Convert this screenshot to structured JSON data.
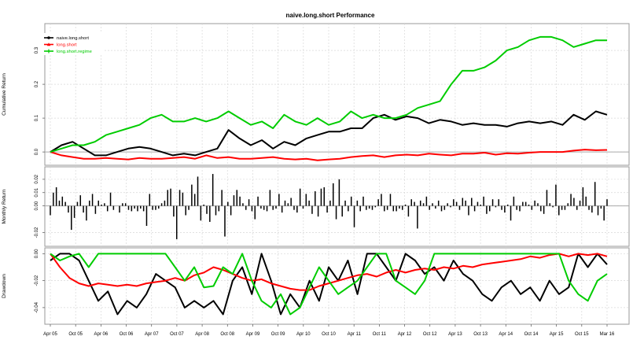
{
  "chart_data": {
    "type": "line",
    "title": "naive.long.short Performance",
    "x_labels": [
      "Apr 05",
      "Oct 05",
      "Apr 06",
      "Oct 06",
      "Apr 07",
      "Oct 07",
      "Apr 08",
      "Oct 08",
      "Apr 09",
      "Oct 09",
      "Apr 10",
      "Oct 10",
      "Apr 11",
      "Oct 11",
      "Apr 12",
      "Oct 12",
      "Apr 13",
      "Oct 13",
      "Apr 14",
      "Oct 14",
      "Apr 15",
      "Oct 15",
      "Mar 16"
    ],
    "grid": true,
    "legend_position": "top-left",
    "panels": [
      {
        "ylabel": "Cumulative Return",
        "ylim": [
          -0.03,
          0.37
        ],
        "yticks": [
          "0.0",
          "0.1",
          "0.2",
          "0.3"
        ],
        "ytick_values": [
          0.0,
          0.1,
          0.2,
          0.3
        ],
        "series": [
          {
            "name": "naive.long.short",
            "color": "#000000",
            "marker": "circle",
            "values": [
              0.0,
              0.02,
              0.03,
              0.01,
              -0.01,
              -0.01,
              0.0,
              0.01,
              0.015,
              0.01,
              0.0,
              -0.01,
              -0.005,
              -0.01,
              0.0,
              0.01,
              0.065,
              0.04,
              0.02,
              0.035,
              0.01,
              0.03,
              0.02,
              0.04,
              0.05,
              0.06,
              0.06,
              0.07,
              0.07,
              0.1,
              0.11,
              0.095,
              0.105,
              0.1,
              0.085,
              0.095,
              0.09,
              0.08,
              0.085,
              0.08,
              0.08,
              0.075,
              0.085,
              0.09,
              0.085,
              0.09,
              0.08,
              0.11,
              0.095,
              0.12,
              0.11
            ]
          },
          {
            "name": "long.short",
            "color": "#ff0000",
            "marker": "triangle",
            "values": [
              0.0,
              -0.01,
              -0.015,
              -0.02,
              -0.02,
              -0.018,
              -0.02,
              -0.022,
              -0.018,
              -0.02,
              -0.02,
              -0.018,
              -0.015,
              -0.02,
              -0.01,
              -0.018,
              -0.015,
              -0.02,
              -0.02,
              -0.018,
              -0.015,
              -0.02,
              -0.022,
              -0.02,
              -0.025,
              -0.022,
              -0.02,
              -0.015,
              -0.012,
              -0.01,
              -0.015,
              -0.01,
              -0.008,
              -0.01,
              -0.005,
              -0.008,
              -0.01,
              -0.005,
              -0.005,
              -0.002,
              -0.008,
              -0.004,
              -0.005,
              -0.002,
              0.0,
              0.0,
              0.0,
              0.004,
              0.007,
              0.005,
              0.006
            ]
          },
          {
            "name": "long.short.regime",
            "color": "#00cc00",
            "marker": "plus",
            "values": [
              0.0,
              0.01,
              0.02,
              0.02,
              0.03,
              0.05,
              0.06,
              0.07,
              0.08,
              0.1,
              0.11,
              0.09,
              0.09,
              0.1,
              0.09,
              0.1,
              0.12,
              0.1,
              0.08,
              0.09,
              0.07,
              0.11,
              0.09,
              0.08,
              0.1,
              0.08,
              0.09,
              0.12,
              0.1,
              0.11,
              0.1,
              0.1,
              0.11,
              0.13,
              0.14,
              0.15,
              0.2,
              0.24,
              0.24,
              0.25,
              0.27,
              0.3,
              0.31,
              0.33,
              0.34,
              0.34,
              0.33,
              0.31,
              0.32,
              0.33,
              0.33
            ]
          }
        ]
      },
      {
        "ylabel": "Monthly Return",
        "ylim": [
          -0.028,
          0.027
        ],
        "yticks": [
          "-0.02",
          "0.00",
          "0.01",
          "0.02"
        ],
        "ytick_values": [
          -0.02,
          0.0,
          0.01,
          0.02
        ],
        "bar_values": [
          -0.007,
          0.01,
          0.014,
          0.004,
          0.007,
          0.003,
          -0.005,
          -0.018,
          -0.009,
          0.003,
          0.008,
          -0.005,
          -0.011,
          0.004,
          0.009,
          -0.006,
          0.004,
          0.001,
          0.002,
          -0.004,
          0.01,
          -0.003,
          0.0,
          -0.005,
          0.002,
          0.002,
          -0.003,
          -0.004,
          -0.002,
          -0.004,
          -0.002,
          -0.004,
          -0.015,
          0.009,
          -0.003,
          -0.003,
          -0.002,
          0.002,
          0.004,
          0.012,
          0.013,
          -0.008,
          -0.025,
          0.012,
          0.01,
          -0.007,
          -0.003,
          0.016,
          0.009,
          0.022,
          -0.011,
          0.001,
          -0.006,
          -0.012,
          0.024,
          -0.007,
          -0.004,
          0.012,
          -0.023,
          0.003,
          -0.007,
          0.008,
          0.012,
          0.007,
          0.002,
          -0.003,
          0.005,
          -0.004,
          -0.01,
          0.007,
          -0.002,
          -0.003,
          -0.004,
          0.012,
          -0.003,
          -0.002,
          0.009,
          -0.005,
          0.004,
          0.002,
          0.006,
          -0.003,
          -0.005,
          0.013,
          -0.002,
          0.009,
          0.004,
          -0.006,
          0.011,
          -0.008,
          0.013,
          0.014,
          -0.005,
          0.004,
          0.017,
          -0.01,
          0.02,
          -0.008,
          0.004,
          -0.004,
          0.007,
          -0.016,
          0.004,
          -0.004,
          0.007,
          -0.003,
          -0.002,
          -0.003,
          -0.001,
          0.005,
          0.009,
          -0.004,
          -0.003,
          0.009,
          -0.004,
          -0.004,
          -0.002,
          -0.003,
          0.001,
          -0.008,
          0.005,
          0.003,
          -0.017,
          0.004,
          0.002,
          0.007,
          -0.003,
          0.002,
          -0.002,
          0.004,
          -0.004,
          -0.003,
          0.002,
          -0.001,
          0.005,
          0.003,
          -0.003,
          0.006,
          0.004,
          -0.007,
          0.006,
          -0.004,
          0.003,
          0.001,
          0.007,
          -0.006,
          -0.004,
          0.005,
          -0.001,
          0.005,
          -0.003,
          -0.005,
          0.001,
          -0.011,
          0.007,
          -0.003,
          -0.004,
          0.003,
          0.003,
          0.001,
          -0.003,
          0.004,
          0.002,
          -0.004,
          -0.006,
          0.012,
          0.002,
          -0.001,
          0.016,
          -0.007,
          -0.003,
          -0.003,
          0.002,
          0.009,
          0.006,
          -0.003,
          0.004,
          0.014,
          0.007,
          -0.003,
          -0.005,
          0.018,
          -0.007,
          -0.002,
          -0.011,
          0.005
        ]
      },
      {
        "ylabel": "Drawdown",
        "ylim": [
          -0.05,
          0.002
        ],
        "yticks": [
          "-0.04",
          "-0.02",
          "0.00"
        ],
        "ytick_values": [
          -0.04,
          -0.02,
          0.0
        ],
        "series": [
          {
            "name": "naive.long.short",
            "color": "#000000",
            "values": [
              -0.005,
              0.0,
              0.0,
              -0.005,
              -0.02,
              -0.035,
              -0.028,
              -0.045,
              -0.035,
              -0.04,
              -0.03,
              -0.015,
              -0.02,
              -0.025,
              -0.04,
              -0.035,
              -0.04,
              -0.035,
              -0.045,
              -0.02,
              -0.01,
              -0.03,
              0.0,
              -0.02,
              -0.045,
              -0.03,
              -0.04,
              -0.02,
              -0.035,
              -0.01,
              -0.02,
              -0.005,
              -0.03,
              0.0,
              0.0,
              -0.01,
              -0.02,
              0.0,
              -0.005,
              -0.015,
              -0.01,
              -0.02,
              -0.005,
              -0.015,
              -0.02,
              -0.03,
              -0.035,
              -0.025,
              -0.02,
              -0.03,
              -0.025,
              -0.035,
              -0.02,
              -0.03,
              -0.025,
              0.0,
              -0.01,
              0.0,
              -0.008
            ]
          },
          {
            "name": "long.short",
            "color": "#ff0000",
            "values": [
              0.0,
              -0.01,
              -0.018,
              -0.022,
              -0.024,
              -0.022,
              -0.023,
              -0.024,
              -0.023,
              -0.024,
              -0.022,
              -0.021,
              -0.02,
              -0.018,
              -0.02,
              -0.016,
              -0.014,
              -0.01,
              -0.012,
              -0.015,
              -0.018,
              -0.02,
              -0.019,
              -0.022,
              -0.024,
              -0.026,
              -0.027,
              -0.027,
              -0.024,
              -0.022,
              -0.02,
              -0.018,
              -0.016,
              -0.015,
              -0.017,
              -0.014,
              -0.012,
              -0.014,
              -0.012,
              -0.011,
              -0.012,
              -0.01,
              -0.011,
              -0.009,
              -0.01,
              -0.008,
              -0.007,
              -0.006,
              -0.005,
              -0.004,
              -0.002,
              -0.003,
              -0.001,
              0.0,
              -0.002,
              0.0,
              -0.001,
              0.0,
              -0.002
            ]
          },
          {
            "name": "long.short.regime",
            "color": "#00cc00",
            "values": [
              0.0,
              -0.005,
              -0.002,
              0.0,
              -0.01,
              0.0,
              0.0,
              0.0,
              0.0,
              0.0,
              0.0,
              0.0,
              0.0,
              -0.01,
              -0.02,
              -0.01,
              -0.025,
              -0.024,
              -0.01,
              -0.015,
              0.0,
              -0.02,
              -0.035,
              -0.04,
              -0.03,
              -0.045,
              -0.04,
              -0.025,
              -0.01,
              -0.02,
              -0.03,
              -0.025,
              -0.02,
              -0.01,
              0.0,
              0.0,
              -0.02,
              -0.025,
              -0.03,
              -0.02,
              0.0,
              0.0,
              0.0,
              0.0,
              0.0,
              0.0,
              0.0,
              0.0,
              0.0,
              0.0,
              0.0,
              0.0,
              0.0,
              0.0,
              -0.02,
              -0.03,
              -0.035,
              -0.02,
              -0.015
            ]
          }
        ]
      }
    ]
  }
}
